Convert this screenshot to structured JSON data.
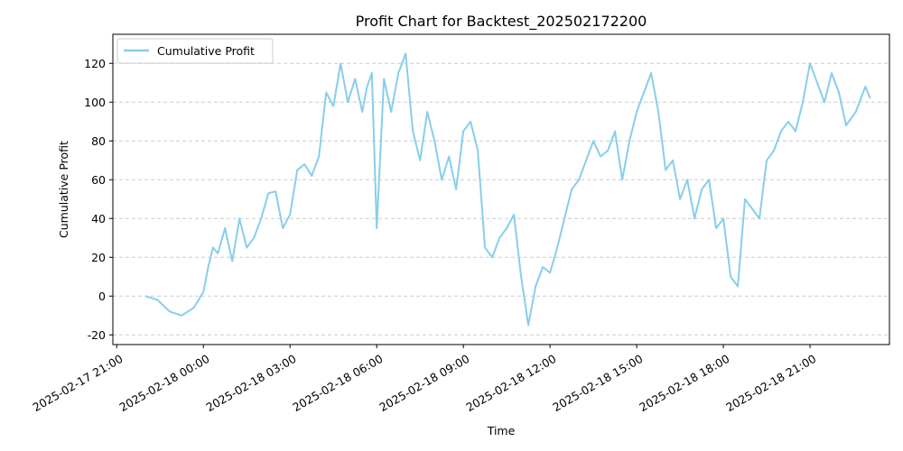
{
  "chart_data": {
    "type": "line",
    "title": "Profit Chart for Backtest_202502172200",
    "xlabel": "Time",
    "ylabel": "Cumulative Profit",
    "xlim": [
      "2025-02-17 20:52",
      "2025-02-18 23:45"
    ],
    "ylim": [
      -25,
      135
    ],
    "x_ticks": [
      "2025-02-17 21:00",
      "2025-02-18 00:00",
      "2025-02-18 03:00",
      "2025-02-18 06:00",
      "2025-02-18 09:00",
      "2025-02-18 12:00",
      "2025-02-18 15:00",
      "2025-02-18 18:00",
      "2025-02-18 21:00"
    ],
    "y_ticks": [
      -20,
      0,
      20,
      40,
      60,
      80,
      100,
      120
    ],
    "grid": "y-dashed",
    "legend": {
      "placement": "upper-left",
      "entries": [
        "Cumulative Profit"
      ]
    },
    "series": [
      {
        "name": "Cumulative Profit",
        "color": "#87ceeb",
        "x": [
          "2025-02-17 22:00",
          "2025-02-17 22:25",
          "2025-02-17 22:50",
          "2025-02-17 23:15",
          "2025-02-17 23:40",
          "2025-02-18 00:00",
          "2025-02-18 00:10",
          "2025-02-18 00:20",
          "2025-02-18 00:30",
          "2025-02-18 00:45",
          "2025-02-18 01:00",
          "2025-02-18 01:15",
          "2025-02-18 01:30",
          "2025-02-18 01:45",
          "2025-02-18 02:00",
          "2025-02-18 02:15",
          "2025-02-18 02:30",
          "2025-02-18 02:45",
          "2025-02-18 03:00",
          "2025-02-18 03:15",
          "2025-02-18 03:30",
          "2025-02-18 03:45",
          "2025-02-18 04:00",
          "2025-02-18 04:15",
          "2025-02-18 04:30",
          "2025-02-18 04:45",
          "2025-02-18 05:00",
          "2025-02-18 05:15",
          "2025-02-18 05:30",
          "2025-02-18 05:40",
          "2025-02-18 05:50",
          "2025-02-18 06:00",
          "2025-02-18 06:15",
          "2025-02-18 06:30",
          "2025-02-18 06:45",
          "2025-02-18 07:00",
          "2025-02-18 07:15",
          "2025-02-18 07:30",
          "2025-02-18 07:45",
          "2025-02-18 08:00",
          "2025-02-18 08:15",
          "2025-02-18 08:30",
          "2025-02-18 08:45",
          "2025-02-18 09:00",
          "2025-02-18 09:15",
          "2025-02-18 09:30",
          "2025-02-18 09:45",
          "2025-02-18 10:00",
          "2025-02-18 10:15",
          "2025-02-18 10:30",
          "2025-02-18 10:45",
          "2025-02-18 11:00",
          "2025-02-18 11:15",
          "2025-02-18 11:30",
          "2025-02-18 11:45",
          "2025-02-18 12:00",
          "2025-02-18 12:15",
          "2025-02-18 12:30",
          "2025-02-18 12:45",
          "2025-02-18 13:00",
          "2025-02-18 13:15",
          "2025-02-18 13:30",
          "2025-02-18 13:45",
          "2025-02-18 14:00",
          "2025-02-18 14:15",
          "2025-02-18 14:30",
          "2025-02-18 14:45",
          "2025-02-18 15:00",
          "2025-02-18 15:15",
          "2025-02-18 15:30",
          "2025-02-18 15:45",
          "2025-02-18 16:00",
          "2025-02-18 16:15",
          "2025-02-18 16:30",
          "2025-02-18 16:45",
          "2025-02-18 17:00",
          "2025-02-18 17:15",
          "2025-02-18 17:30",
          "2025-02-18 17:45",
          "2025-02-18 18:00",
          "2025-02-18 18:15",
          "2025-02-18 18:30",
          "2025-02-18 18:45",
          "2025-02-18 19:00",
          "2025-02-18 19:15",
          "2025-02-18 19:30",
          "2025-02-18 19:45",
          "2025-02-18 20:00",
          "2025-02-18 20:15",
          "2025-02-18 20:30",
          "2025-02-18 20:45",
          "2025-02-18 21:00",
          "2025-02-18 21:15",
          "2025-02-18 21:30",
          "2025-02-18 21:45",
          "2025-02-18 22:00",
          "2025-02-18 22:15",
          "2025-02-18 22:35",
          "2025-02-18 22:55",
          "2025-02-18 23:05"
        ],
        "y": [
          0,
          -2,
          -8,
          -10,
          -6,
          2,
          15,
          25,
          22,
          35,
          18,
          40,
          25,
          30,
          40,
          53,
          54,
          35,
          42,
          65,
          68,
          62,
          72,
          105,
          98,
          120,
          100,
          112,
          95,
          108,
          115,
          35,
          112,
          95,
          115,
          125,
          85,
          70,
          95,
          80,
          60,
          72,
          55,
          85,
          90,
          75,
          25,
          20,
          30,
          35,
          42,
          10,
          -15,
          5,
          15,
          12,
          25,
          40,
          55,
          60,
          70,
          80,
          72,
          75,
          85,
          60,
          80,
          95,
          105,
          115,
          95,
          65,
          70,
          50,
          60,
          40,
          55,
          60,
          35,
          40,
          10,
          5,
          50,
          45,
          40,
          70,
          75,
          85,
          90,
          85,
          100,
          120,
          110,
          100,
          115,
          105,
          88,
          95,
          108,
          102
        ]
      }
    ]
  }
}
